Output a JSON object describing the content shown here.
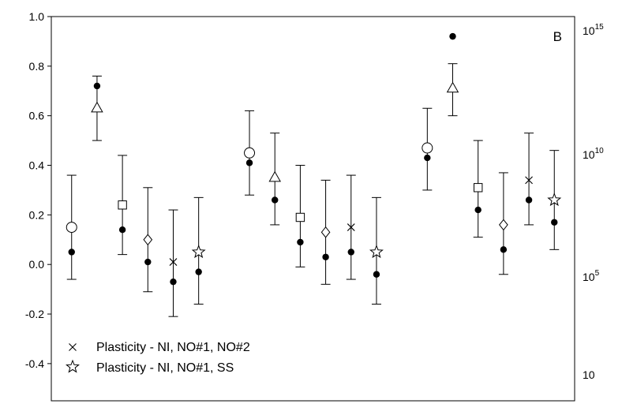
{
  "chart_data": {
    "type": "scatter",
    "panel_label": "B",
    "xlabel": "",
    "ylabel": "",
    "ylim": [
      -0.55,
      1.0
    ],
    "y_ticks": [
      {
        "value": -0.4,
        "label": "-0.4"
      },
      {
        "value": -0.2,
        "label": "-0.2"
      },
      {
        "value": 0.0,
        "label": "0.0"
      },
      {
        "value": 0.2,
        "label": "0.2"
      },
      {
        "value": 0.4,
        "label": "0.4"
      },
      {
        "value": 0.6,
        "label": "0.6"
      },
      {
        "value": 0.8,
        "label": "0.8"
      },
      {
        "value": 1.0,
        "label": "1.0"
      }
    ],
    "y2_axis": {
      "scale": "log",
      "ticks": [
        {
          "value": 1000000000000000.0,
          "base": "10",
          "exp": "15"
        },
        {
          "value": 10000000000.0,
          "base": "10",
          "exp": "10"
        },
        {
          "value": 100000.0,
          "base": "10",
          "exp": "5"
        },
        {
          "value": 10,
          "base": "10",
          "exp": ""
        }
      ]
    },
    "grid": false,
    "legend_position": "bottom-left",
    "x_positions": [
      1,
      2,
      3,
      4,
      5,
      6,
      8,
      9,
      10,
      11,
      12,
      13,
      15,
      16,
      17,
      18,
      19,
      20
    ],
    "xlim": [
      0.2,
      20.8
    ],
    "open_markers": [
      {
        "x": 1,
        "symbol": "circle",
        "value": 0.15,
        "err_low": -0.06,
        "err_high": 0.36
      },
      {
        "x": 2,
        "symbol": "triangle",
        "value": 0.63,
        "err_low": 0.5,
        "err_high": 0.76
      },
      {
        "x": 3,
        "symbol": "square",
        "value": 0.24,
        "err_low": 0.04,
        "err_high": 0.44
      },
      {
        "x": 4,
        "symbol": "diamond",
        "value": 0.1,
        "err_low": -0.11,
        "err_high": 0.31
      },
      {
        "x": 5,
        "symbol": "cross",
        "value": 0.01,
        "err_low": -0.21,
        "err_high": 0.22
      },
      {
        "x": 6,
        "symbol": "star",
        "value": 0.05,
        "err_low": -0.16,
        "err_high": 0.27
      },
      {
        "x": 8,
        "symbol": "circle",
        "value": 0.45,
        "err_low": 0.28,
        "err_high": 0.62
      },
      {
        "x": 9,
        "symbol": "triangle",
        "value": 0.35,
        "err_low": 0.16,
        "err_high": 0.53
      },
      {
        "x": 10,
        "symbol": "square",
        "value": 0.19,
        "err_low": -0.01,
        "err_high": 0.4
      },
      {
        "x": 11,
        "symbol": "diamond",
        "value": 0.13,
        "err_low": -0.08,
        "err_high": 0.34
      },
      {
        "x": 12,
        "symbol": "cross",
        "value": 0.15,
        "err_low": -0.06,
        "err_high": 0.36
      },
      {
        "x": 13,
        "symbol": "star",
        "value": 0.05,
        "err_low": -0.16,
        "err_high": 0.27
      },
      {
        "x": 15,
        "symbol": "circle",
        "value": 0.47,
        "err_low": 0.3,
        "err_high": 0.63
      },
      {
        "x": 16,
        "symbol": "triangle",
        "value": 0.71,
        "err_low": 0.6,
        "err_high": 0.81
      },
      {
        "x": 17,
        "symbol": "square",
        "value": 0.31,
        "err_low": 0.11,
        "err_high": 0.5
      },
      {
        "x": 18,
        "symbol": "diamond",
        "value": 0.16,
        "err_low": -0.04,
        "err_high": 0.37
      },
      {
        "x": 19,
        "symbol": "cross",
        "value": 0.34,
        "err_low": 0.16,
        "err_high": 0.53
      },
      {
        "x": 20,
        "symbol": "star",
        "value": 0.26,
        "err_low": 0.06,
        "err_high": 0.46
      }
    ],
    "filled_points": [
      {
        "x": 1,
        "value": 0.05
      },
      {
        "x": 2,
        "value": 0.72
      },
      {
        "x": 3,
        "value": 0.14
      },
      {
        "x": 4,
        "value": 0.01
      },
      {
        "x": 5,
        "value": -0.07
      },
      {
        "x": 6,
        "value": -0.03
      },
      {
        "x": 8,
        "value": 0.41
      },
      {
        "x": 9,
        "value": 0.26
      },
      {
        "x": 10,
        "value": 0.09
      },
      {
        "x": 11,
        "value": 0.03
      },
      {
        "x": 12,
        "value": 0.05
      },
      {
        "x": 13,
        "value": -0.04
      },
      {
        "x": 15,
        "value": 0.43
      },
      {
        "x": 16,
        "value": 0.92
      },
      {
        "x": 17,
        "value": 0.22
      },
      {
        "x": 18,
        "value": 0.06
      },
      {
        "x": 19,
        "value": 0.26
      },
      {
        "x": 20,
        "value": 0.17
      }
    ],
    "legend": [
      {
        "symbol": "cross",
        "label": "Plasticity - NI, NO#1, NO#2"
      },
      {
        "symbol": "star",
        "label": "Plasticity - NI, NO#1, SS"
      }
    ]
  }
}
